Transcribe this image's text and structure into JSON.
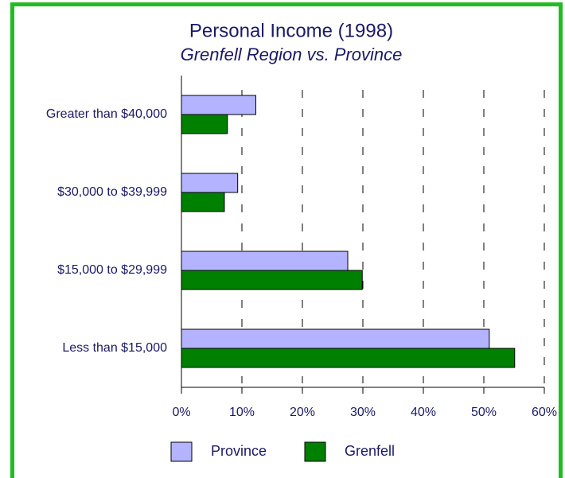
{
  "chart_data": {
    "type": "bar",
    "orientation": "horizontal",
    "title": "Personal Income (1998)",
    "subtitle": "Grenfell Region vs. Province",
    "categories": [
      "Greater than $40,000",
      "$30,000 to $39,999",
      "$15,000 to $29,999",
      "Less than $15,000"
    ],
    "series": [
      {
        "name": "Province",
        "color": "#b3b3ff",
        "values": [
          12.3,
          9.3,
          27.5,
          50.9
        ]
      },
      {
        "name": "Grenfell",
        "color": "#008000",
        "values": [
          7.6,
          7.1,
          29.9,
          55.1
        ]
      }
    ],
    "xlim": [
      0,
      60
    ],
    "xticks": [
      {
        "value": 0,
        "label": "0%"
      },
      {
        "value": 10,
        "label": "10%"
      },
      {
        "value": 20,
        "label": "20%"
      },
      {
        "value": 30,
        "label": "30%"
      },
      {
        "value": 40,
        "label": "40%"
      },
      {
        "value": 50,
        "label": "50%"
      },
      {
        "value": 60,
        "label": "60%"
      }
    ],
    "grid": true,
    "legend": "bottom"
  }
}
